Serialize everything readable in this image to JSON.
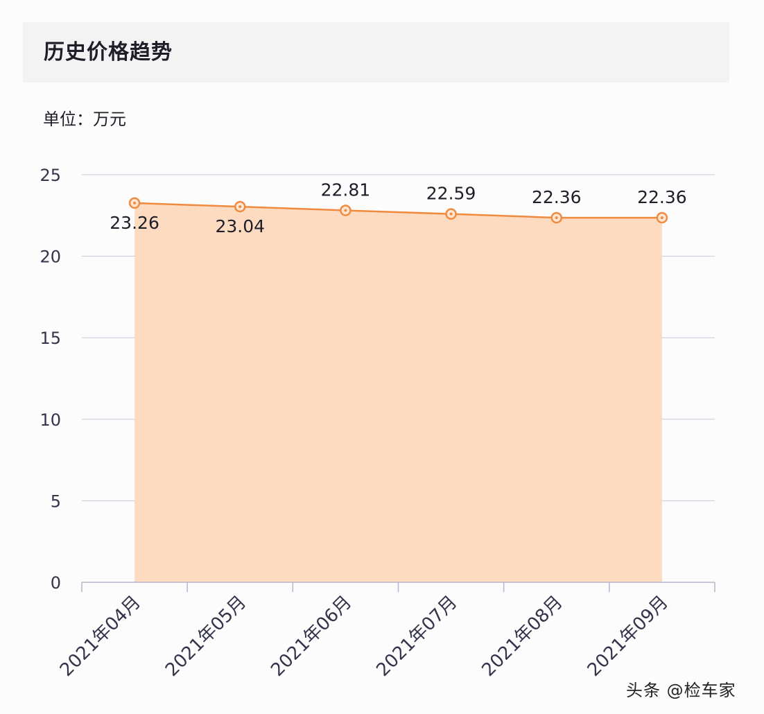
{
  "header": {
    "title": "历史价格趋势"
  },
  "unit_label": "单位：万元",
  "watermark": "头条 @检车家",
  "chart_data": {
    "type": "area",
    "title": "历史价格趋势",
    "categories": [
      "2021年04月",
      "2021年05月",
      "2021年06月",
      "2021年07月",
      "2021年08月",
      "2021年09月"
    ],
    "values": [
      23.26,
      23.04,
      22.81,
      22.59,
      22.36,
      22.36
    ],
    "data_labels": [
      "23.26",
      "23.04",
      "22.81",
      "22.59",
      "22.36",
      "22.36"
    ],
    "y_ticks": [
      0,
      5,
      10,
      15,
      20,
      25
    ],
    "ylim": [
      0,
      25
    ],
    "xlabel": "",
    "ylabel": "",
    "grid": true,
    "colors": {
      "line": "#f08a3e",
      "area": "#fdd9be",
      "grid": "#c8c9d8",
      "axis": "#b4b6cf",
      "text": "#33334a"
    }
  }
}
